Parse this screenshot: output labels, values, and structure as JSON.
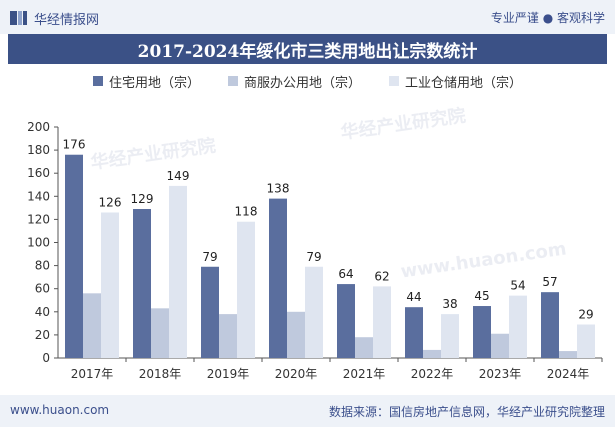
{
  "header": {
    "logo_text": "华经情报网",
    "tagline": "专业严谨 ● 客观科学"
  },
  "footer": {
    "url": "www.huaon.com",
    "source": "数据来源：国信房地产信息网，华经产业研究院整理"
  },
  "watermark": {
    "text": "华经产业研究院",
    "url": "www.huaon.com"
  },
  "colors": {
    "title_bg": "#3b5186",
    "series_1": "#5a6e9e",
    "series_2": "#bfc9dd",
    "series_3": "#dfe5f0"
  },
  "chart_data": {
    "type": "bar",
    "title": "2017-2024年绥化市三类用地出让宗数统计",
    "categories": [
      "2017年",
      "2018年",
      "2019年",
      "2020年",
      "2021年",
      "2022年",
      "2023年",
      "2024年"
    ],
    "series": [
      {
        "name": "住宅用地（宗）",
        "values": [
          176,
          129,
          79,
          138,
          64,
          44,
          45,
          57
        ],
        "labeled": true
      },
      {
        "name": "商服办公用地（宗）",
        "values": [
          56,
          43,
          38,
          40,
          18,
          7,
          21,
          6
        ],
        "labeled": false
      },
      {
        "name": "工业仓储用地（宗）",
        "values": [
          126,
          149,
          118,
          79,
          62,
          38,
          54,
          29
        ],
        "labeled": true
      }
    ],
    "ylim": [
      0,
      200
    ],
    "yticks": [
      0,
      20,
      40,
      60,
      80,
      100,
      120,
      140,
      160,
      180,
      200
    ],
    "grid": false,
    "legend": "top-center"
  }
}
